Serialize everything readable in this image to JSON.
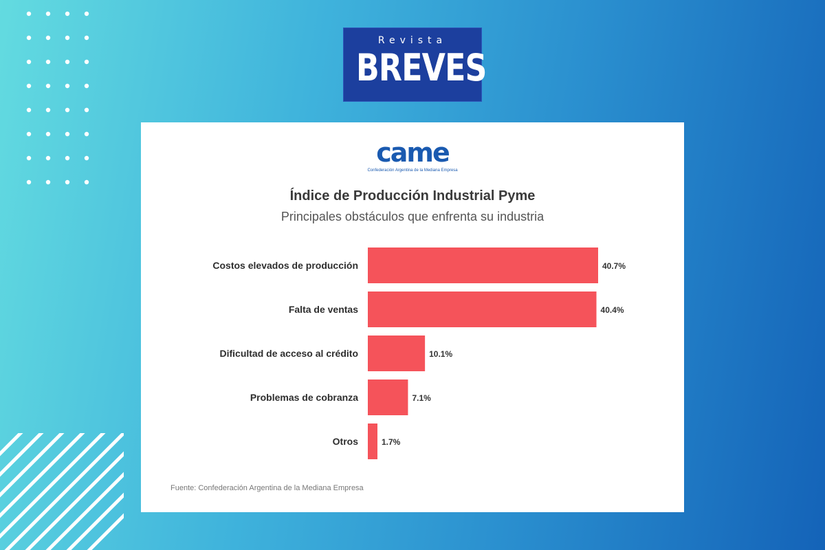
{
  "logo": {
    "line1": "Revista",
    "line2": "BREVES"
  },
  "brand": {
    "name": "came",
    "tagline": "Confederación Argentina de la Mediana Empresa"
  },
  "colors": {
    "bar": "#f5535a",
    "logo_bg": "#1c3f9e",
    "came_blue": "#1a5ab0"
  },
  "chart_data": {
    "type": "bar",
    "orientation": "horizontal",
    "title": "Índice de Producción Industrial Pyme",
    "subtitle": "Principales obstáculos que enfrenta su industria",
    "categories": [
      "Costos elevados de producción",
      "Falta de ventas",
      "Dificultad de acceso al crédito",
      "Problemas de cobranza",
      "Otros"
    ],
    "values": [
      40.7,
      40.4,
      10.1,
      7.1,
      1.7
    ],
    "value_labels": [
      "40.7%",
      "40.4%",
      "10.1%",
      "7.1%",
      "1.7%"
    ],
    "xlim": [
      0,
      40.7
    ],
    "grid": false,
    "source": "Fuente: Confederación Argentina de la Mediana Empresa"
  }
}
